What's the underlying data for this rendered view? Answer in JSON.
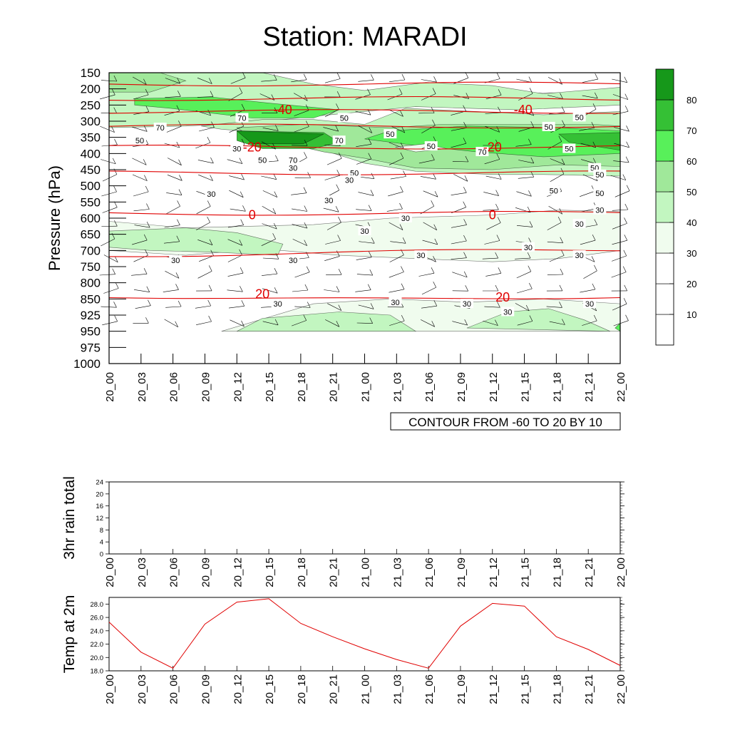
{
  "title": "Station: MARADI",
  "time_labels": [
    "20_00",
    "20_03",
    "20_06",
    "20_09",
    "20_12",
    "20_15",
    "20_18",
    "20_21",
    "21_00",
    "21_03",
    "21_06",
    "21_09",
    "21_12",
    "21_15",
    "21_18",
    "21_21",
    "22_00"
  ],
  "colors": {
    "levels": [
      "#ffffff",
      "#ffffff",
      "#ffffff",
      "#f0fcee",
      "#c2f6c0",
      "#a0e89a",
      "#58f05a",
      "#35c035",
      "#16981a"
    ],
    "temp_line": "#e00000",
    "contour": "#000000"
  },
  "chart_data": [
    {
      "type": "heatmap",
      "name": "profile",
      "ylabel": "Pressure (hPa)",
      "pressure_levels": [
        "150",
        "200",
        "250",
        "300",
        "350",
        "400",
        "450",
        "500",
        "550",
        "600",
        "650",
        "700",
        "750",
        "800",
        "850",
        "925",
        "950",
        "975",
        "1000"
      ],
      "colorbar_labels": [
        "10",
        "20",
        "30",
        "40",
        "50",
        "60",
        "70",
        "80"
      ],
      "humidity_labels": [
        {
          "text": "70",
          "t": 0.26,
          "p": 2.8
        },
        {
          "text": "50",
          "t": 0.46,
          "p": 2.8
        },
        {
          "text": "50",
          "t": 0.92,
          "p": 2.75
        },
        {
          "text": "70",
          "t": 0.1,
          "p": 3.4
        },
        {
          "text": "50",
          "t": 0.55,
          "p": 3.8
        },
        {
          "text": "50",
          "t": 0.86,
          "p": 3.35
        },
        {
          "text": "50",
          "t": 0.06,
          "p": 4.2
        },
        {
          "text": "70",
          "t": 0.45,
          "p": 4.2
        },
        {
          "text": "30",
          "t": 0.25,
          "p": 4.7
        },
        {
          "text": "50",
          "t": 0.9,
          "p": 4.7
        },
        {
          "text": "70",
          "t": 0.73,
          "p": 4.9
        },
        {
          "text": "50",
          "t": 0.63,
          "p": 4.55
        },
        {
          "text": "50",
          "t": 0.3,
          "p": 5.4
        },
        {
          "text": "70",
          "t": 0.36,
          "p": 5.4
        },
        {
          "text": "30",
          "t": 0.36,
          "p": 5.9
        },
        {
          "text": "50",
          "t": 0.48,
          "p": 6.2
        },
        {
          "text": "50",
          "t": 0.95,
          "p": 5.9
        },
        {
          "text": "50",
          "t": 0.96,
          "p": 6.3
        },
        {
          "text": "30",
          "t": 0.47,
          "p": 6.65
        },
        {
          "text": "30",
          "t": 0.2,
          "p": 7.5
        },
        {
          "text": "30",
          "t": 0.43,
          "p": 7.9
        },
        {
          "text": "50",
          "t": 0.87,
          "p": 7.3
        },
        {
          "text": "50",
          "t": 0.96,
          "p": 7.45
        },
        {
          "text": "30",
          "t": 0.96,
          "p": 8.5
        },
        {
          "text": "30",
          "t": 0.58,
          "p": 9.0
        },
        {
          "text": "30",
          "t": 0.92,
          "p": 9.35
        },
        {
          "text": "30",
          "t": 0.5,
          "p": 9.8
        },
        {
          "text": "30",
          "t": 0.82,
          "p": 10.8
        },
        {
          "text": "30",
          "t": 0.13,
          "p": 11.6
        },
        {
          "text": "30",
          "t": 0.36,
          "p": 11.6
        },
        {
          "text": "30",
          "t": 0.61,
          "p": 11.3
        },
        {
          "text": "30",
          "t": 0.92,
          "p": 11.3
        },
        {
          "text": "30",
          "t": 0.33,
          "p": 14.3
        },
        {
          "text": "30",
          "t": 0.56,
          "p": 14.2
        },
        {
          "text": "30",
          "t": 0.7,
          "p": 14.3
        },
        {
          "text": "30",
          "t": 0.78,
          "p": 14.8
        },
        {
          "text": "30",
          "t": 0.94,
          "p": 14.3
        }
      ],
      "temperature_labels": [
        {
          "text": "-40",
          "t": 0.34,
          "p": 2.3
        },
        {
          "text": "-40",
          "t": 0.81,
          "p": 2.3
        },
        {
          "text": "-20",
          "t": 0.28,
          "p": 4.6
        },
        {
          "text": "-20",
          "t": 0.75,
          "p": 4.6
        },
        {
          "text": "0",
          "t": 0.28,
          "p": 8.8
        },
        {
          "text": "0",
          "t": 0.75,
          "p": 8.8
        },
        {
          "text": "20",
          "t": 0.3,
          "p": 13.7
        },
        {
          "text": "20",
          "t": 0.77,
          "p": 13.9
        }
      ],
      "info_box": "CONTOUR FROM -60 TO 20 BY 10"
    },
    {
      "type": "line",
      "name": "rain",
      "ylabel": "3hr rain total",
      "yticks": [
        "0",
        "4",
        "8",
        "12",
        "16",
        "20",
        "24"
      ],
      "ylim": [
        0,
        24
      ],
      "values": [
        0,
        0,
        0,
        0,
        0,
        0,
        0,
        0,
        0,
        0,
        0,
        0,
        0,
        0,
        0,
        0,
        0
      ]
    },
    {
      "type": "line",
      "name": "temp",
      "ylabel": "Temp at 2m",
      "yticks": [
        "18.0",
        "20.0",
        "22.0",
        "24.0",
        "26.0",
        "28.0"
      ],
      "ylim": [
        18.0,
        29.0
      ],
      "values": [
        25.3,
        20.8,
        18.4,
        25.0,
        28.3,
        28.8,
        25.1,
        23.1,
        21.3,
        19.7,
        18.4,
        24.7,
        28.1,
        27.7,
        23.1,
        21.2,
        18.8
      ]
    }
  ]
}
